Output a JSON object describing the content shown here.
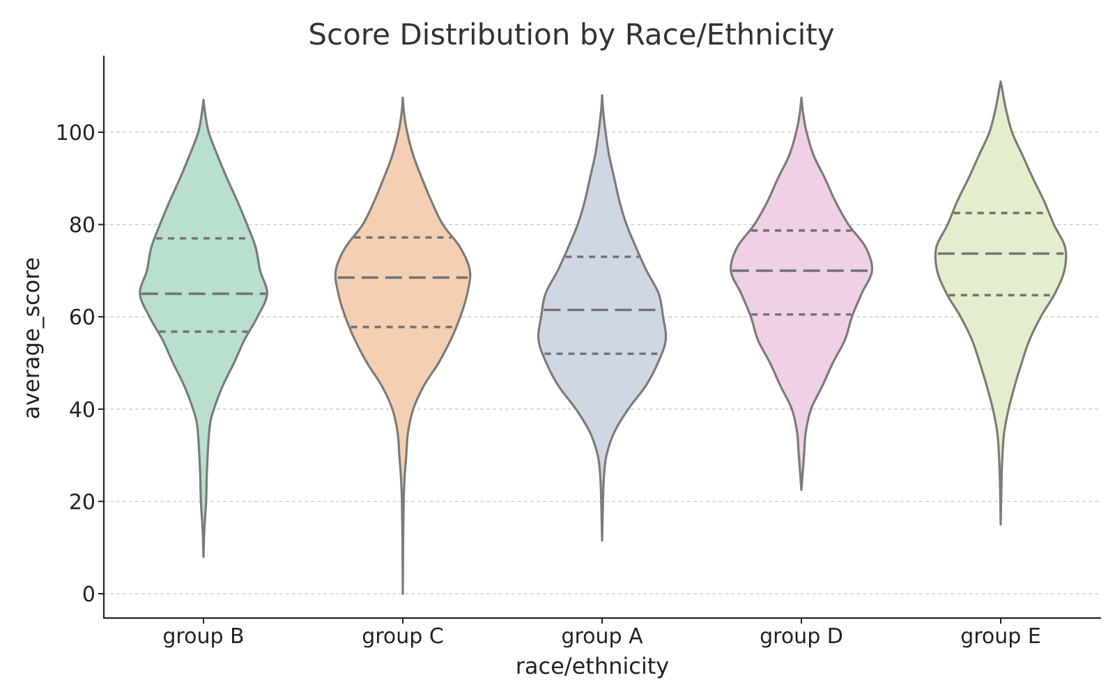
{
  "chart_data": {
    "type": "violin",
    "title": "Score Distribution by Race/Ethnicity",
    "xlabel": "race/ethnicity",
    "ylabel": "average_score",
    "ylim": [
      -5,
      117
    ],
    "yticks": [
      0,
      20,
      40,
      60,
      80,
      100
    ],
    "grid": "horizontal dashed",
    "categories": [
      "group B",
      "group C",
      "group A",
      "group D",
      "group E"
    ],
    "colors": [
      "#b9dfcd",
      "#f4cfb1",
      "#d0d7e4",
      "#efd0e4",
      "#e3efcc"
    ],
    "series": [
      {
        "min": 8,
        "max": 107,
        "q1": 56.8,
        "median": 65,
        "q3": 77,
        "profile": [
          [
            8,
            0
          ],
          [
            14,
            0.01
          ],
          [
            20,
            0.03
          ],
          [
            27,
            0.04
          ],
          [
            36,
            0.07
          ],
          [
            40,
            0.12
          ],
          [
            45,
            0.22
          ],
          [
            50,
            0.35
          ],
          [
            55,
            0.47
          ],
          [
            60,
            0.62
          ],
          [
            65,
            0.73
          ],
          [
            70,
            0.65
          ],
          [
            75,
            0.6
          ],
          [
            80,
            0.5
          ],
          [
            85,
            0.39
          ],
          [
            90,
            0.27
          ],
          [
            95,
            0.16
          ],
          [
            100,
            0.06
          ],
          [
            104,
            0.02
          ],
          [
            107,
            0
          ]
        ]
      },
      {
        "min": 0,
        "max": 107.5,
        "q1": 57.8,
        "median": 68.5,
        "q3": 77.2,
        "profile": [
          [
            0,
            0
          ],
          [
            10,
            0.003
          ],
          [
            20,
            0.01
          ],
          [
            25,
            0.02
          ],
          [
            30,
            0.04
          ],
          [
            35,
            0.06
          ],
          [
            40,
            0.12
          ],
          [
            45,
            0.24
          ],
          [
            50,
            0.41
          ],
          [
            55,
            0.55
          ],
          [
            60,
            0.66
          ],
          [
            65,
            0.74
          ],
          [
            70,
            0.77
          ],
          [
            75,
            0.66
          ],
          [
            80,
            0.46
          ],
          [
            85,
            0.33
          ],
          [
            90,
            0.22
          ],
          [
            95,
            0.12
          ],
          [
            100,
            0.05
          ],
          [
            104,
            0.015
          ],
          [
            107.5,
            0
          ]
        ]
      },
      {
        "min": 11.5,
        "max": 108,
        "q1": 52,
        "median": 61.5,
        "q3": 73,
        "profile": [
          [
            11.5,
            0
          ],
          [
            20,
            0.01
          ],
          [
            25,
            0.02
          ],
          [
            30,
            0.05
          ],
          [
            35,
            0.14
          ],
          [
            40,
            0.3
          ],
          [
            45,
            0.5
          ],
          [
            50,
            0.64
          ],
          [
            55,
            0.73
          ],
          [
            60,
            0.7
          ],
          [
            65,
            0.65
          ],
          [
            70,
            0.51
          ],
          [
            75,
            0.39
          ],
          [
            80,
            0.28
          ],
          [
            85,
            0.2
          ],
          [
            90,
            0.14
          ],
          [
            95,
            0.08
          ],
          [
            100,
            0.04
          ],
          [
            105,
            0.01
          ],
          [
            108,
            0
          ]
        ]
      },
      {
        "min": 22.5,
        "max": 107.5,
        "q1": 60.5,
        "median": 70,
        "q3": 78.7,
        "profile": [
          [
            22.5,
            0
          ],
          [
            30,
            0.03
          ],
          [
            35,
            0.05
          ],
          [
            40,
            0.11
          ],
          [
            45,
            0.24
          ],
          [
            50,
            0.36
          ],
          [
            55,
            0.5
          ],
          [
            60,
            0.58
          ],
          [
            65,
            0.69
          ],
          [
            70,
            0.81
          ],
          [
            75,
            0.74
          ],
          [
            80,
            0.54
          ],
          [
            85,
            0.39
          ],
          [
            90,
            0.27
          ],
          [
            95,
            0.14
          ],
          [
            100,
            0.06
          ],
          [
            104,
            0.02
          ],
          [
            107.5,
            0
          ]
        ]
      },
      {
        "min": 15,
        "max": 111,
        "q1": 64.7,
        "median": 73.7,
        "q3": 82.5,
        "profile": [
          [
            15,
            0
          ],
          [
            25,
            0.01
          ],
          [
            30,
            0.02
          ],
          [
            35,
            0.04
          ],
          [
            40,
            0.09
          ],
          [
            45,
            0.16
          ],
          [
            50,
            0.24
          ],
          [
            55,
            0.33
          ],
          [
            60,
            0.46
          ],
          [
            65,
            0.62
          ],
          [
            70,
            0.73
          ],
          [
            75,
            0.74
          ],
          [
            80,
            0.61
          ],
          [
            85,
            0.5
          ],
          [
            90,
            0.37
          ],
          [
            95,
            0.25
          ],
          [
            100,
            0.13
          ],
          [
            105,
            0.06
          ],
          [
            109,
            0.02
          ],
          [
            111,
            0
          ]
        ]
      }
    ]
  }
}
